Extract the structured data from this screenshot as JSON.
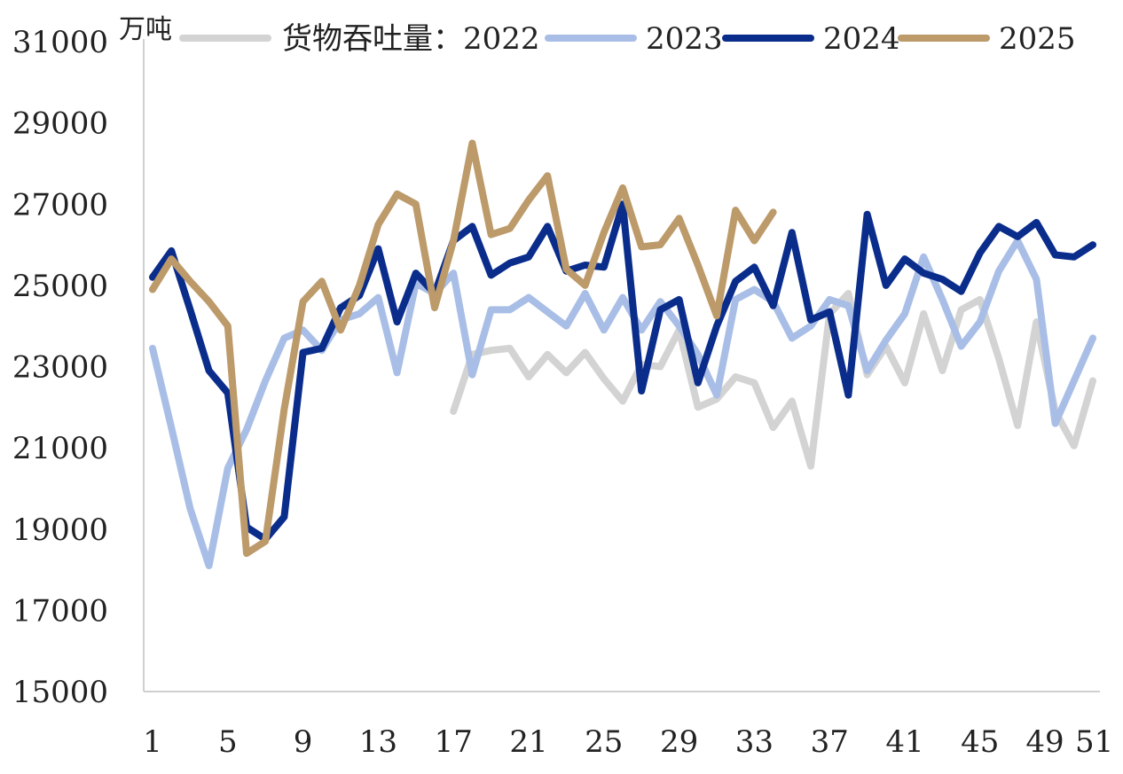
{
  "chart_data": {
    "type": "line",
    "title": "",
    "unit_label": "万吨",
    "legend_prefix": "货物吞吐量：",
    "xlabel": "",
    "ylabel": "万吨",
    "ylim": [
      15000,
      31000
    ],
    "yticks": [
      15000,
      17000,
      19000,
      21000,
      23000,
      25000,
      27000,
      29000,
      31000
    ],
    "xlim": [
      1,
      51
    ],
    "xticks": [
      1,
      5,
      9,
      13,
      17,
      21,
      25,
      29,
      33,
      37,
      41,
      45,
      49,
      51
    ],
    "legend_position": "top",
    "grid": false,
    "series": [
      {
        "name": "2022",
        "color": "#d3d3d3",
        "x": [
          17,
          18,
          19,
          20,
          21,
          22,
          23,
          24,
          25,
          26,
          27,
          28,
          29,
          30,
          31,
          32,
          33,
          34,
          35,
          36,
          37,
          38,
          39,
          40,
          41,
          42,
          43,
          44,
          45,
          46,
          47,
          48,
          49,
          50,
          51
        ],
        "values": [
          21900,
          23300,
          23400,
          23450,
          22750,
          23300,
          22850,
          23350,
          22700,
          22150,
          23050,
          23000,
          23900,
          22000,
          22200,
          22750,
          22600,
          21500,
          22150,
          20550,
          24300,
          24800,
          22800,
          23500,
          22600,
          24300,
          22900,
          24400,
          24650,
          23200,
          21550,
          24100,
          21900,
          21050,
          22650
        ]
      },
      {
        "name": "2023",
        "color": "#a9bee6",
        "x": [
          1,
          2,
          3,
          4,
          5,
          6,
          7,
          8,
          9,
          10,
          11,
          12,
          13,
          14,
          15,
          16,
          17,
          18,
          19,
          20,
          21,
          22,
          23,
          24,
          25,
          26,
          27,
          28,
          29,
          30,
          31,
          32,
          33,
          34,
          35,
          36,
          37,
          38,
          39,
          40,
          41,
          42,
          43,
          44,
          45,
          46,
          47,
          48,
          49,
          50,
          51
        ],
        "values": [
          23450,
          21500,
          19500,
          18100,
          20500,
          21450,
          22650,
          23700,
          23900,
          23400,
          24150,
          24300,
          24700,
          22850,
          25050,
          24800,
          25300,
          22800,
          24400,
          24400,
          24700,
          24350,
          24000,
          24800,
          23900,
          24700,
          23900,
          24600,
          24000,
          23300,
          22300,
          24650,
          24900,
          24600,
          23700,
          24000,
          24650,
          24500,
          22900,
          23650,
          24300,
          25700,
          24650,
          23500,
          24100,
          25350,
          26100,
          25150,
          21600,
          22650,
          23700
        ]
      },
      {
        "name": "2024",
        "color": "#0a2d8c",
        "x": [
          1,
          2,
          3,
          4,
          5,
          6,
          7,
          8,
          9,
          10,
          11,
          12,
          13,
          14,
          15,
          16,
          17,
          18,
          19,
          20,
          21,
          22,
          23,
          24,
          25,
          26,
          27,
          28,
          29,
          30,
          31,
          32,
          33,
          34,
          35,
          36,
          37,
          38,
          39,
          40,
          41,
          42,
          43,
          44,
          45,
          46,
          47,
          48,
          49,
          50,
          51
        ],
        "values": [
          25200,
          25850,
          24400,
          22900,
          22350,
          19050,
          18750,
          19300,
          23350,
          23450,
          24450,
          24750,
          25900,
          24100,
          25300,
          24800,
          26100,
          26450,
          25250,
          25550,
          25700,
          26450,
          25350,
          25500,
          25450,
          27000,
          22400,
          24400,
          24650,
          22600,
          24000,
          25100,
          25450,
          24500,
          26300,
          24150,
          24350,
          22300,
          26750,
          25000,
          25650,
          25300,
          25150,
          24850,
          25800,
          26450,
          26200,
          26550,
          25750,
          25700,
          26000
        ]
      },
      {
        "name": "2025",
        "color": "#bc9a6a",
        "x": [
          1,
          2,
          3,
          4,
          5,
          6,
          7,
          8,
          9,
          10,
          11,
          12,
          13,
          14,
          15,
          16,
          17,
          18,
          19,
          20,
          21,
          22,
          23,
          24,
          25,
          26,
          27,
          28,
          29,
          30,
          31,
          32,
          33,
          34
        ],
        "values": [
          24900,
          25650,
          25100,
          24600,
          24000,
          18400,
          18700,
          21950,
          24600,
          25100,
          23900,
          25000,
          26500,
          27250,
          27000,
          24450,
          26100,
          28500,
          26250,
          26400,
          27100,
          27700,
          25400,
          25000,
          26300,
          27400,
          25950,
          26000,
          26650,
          25500,
          24250,
          26850,
          26100,
          26800
        ]
      }
    ]
  }
}
